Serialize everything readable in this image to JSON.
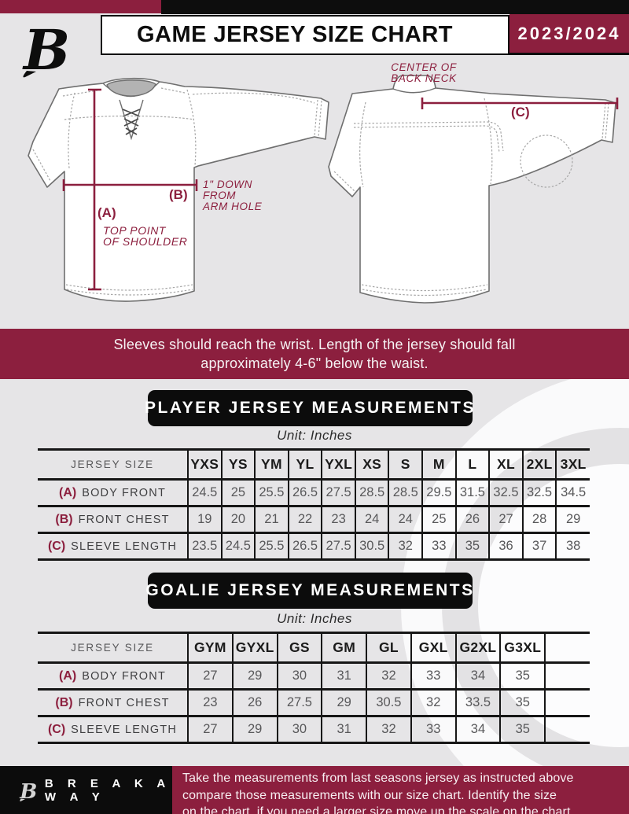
{
  "colors": {
    "maroon": "#8C1F3E",
    "black": "#0D0D0D",
    "background": "#E6E5E7",
    "table_value_text": "#58585A"
  },
  "header": {
    "title": "GAME JERSEY SIZE CHART",
    "season": "2023/2024",
    "logo": "breakaway-b-logo"
  },
  "diagram": {
    "front": {
      "marker_a": "(A)",
      "note_a": [
        "TOP POINT",
        "OF SHOULDER"
      ],
      "marker_b": "(B)",
      "note_b": [
        "1\" DOWN",
        "FROM",
        "ARM HOLE"
      ]
    },
    "back": {
      "marker_c": "(C)",
      "note_c": [
        "CENTER OF",
        "BACK NECK"
      ]
    }
  },
  "notice": {
    "lines": [
      "Sleeves should reach the wrist. Length of the jersey should fall",
      "approximately 4-6\" below the waist."
    ]
  },
  "player": {
    "title": "PLAYER JERSEY MEASUREMENTS",
    "unit": "Unit: Inches",
    "table": {
      "corner_label": "JERSEY SIZE",
      "sizes": [
        "YXS",
        "YS",
        "YM",
        "YL",
        "YXL",
        "XS",
        "S",
        "M",
        "L",
        "XL",
        "2XL",
        "3XL"
      ],
      "trailing_empty_cols": 0,
      "rows": [
        {
          "key": "(A)",
          "label": "BODY FRONT",
          "values": [
            "24.5",
            "25",
            "25.5",
            "26.5",
            "27.5",
            "28.5",
            "28.5",
            "29.5",
            "31.5",
            "32.5",
            "32.5",
            "34.5"
          ]
        },
        {
          "key": "(B)",
          "label": "FRONT CHEST",
          "values": [
            "19",
            "20",
            "21",
            "22",
            "23",
            "24",
            "24",
            "25",
            "26",
            "27",
            "28",
            "29"
          ]
        },
        {
          "key": "(C)",
          "label": "SLEEVE LENGTH",
          "values": [
            "23.5",
            "24.5",
            "25.5",
            "26.5",
            "27.5",
            "30.5",
            "32",
            "33",
            "35",
            "36",
            "37",
            "38"
          ]
        }
      ]
    }
  },
  "goalie": {
    "title": "GOALIE JERSEY MEASUREMENTS",
    "unit": "Unit: Inches",
    "table": {
      "corner_label": "JERSEY SIZE",
      "sizes": [
        "GYM",
        "GYXL",
        "GS",
        "GM",
        "GL",
        "GXL",
        "G2XL",
        "G3XL"
      ],
      "trailing_empty_cols": 1,
      "rows": [
        {
          "key": "(A)",
          "label": "BODY FRONT",
          "values": [
            "27",
            "29",
            "30",
            "31",
            "32",
            "33",
            "34",
            "35"
          ]
        },
        {
          "key": "(B)",
          "label": "FRONT CHEST",
          "values": [
            "23",
            "26",
            "27.5",
            "29",
            "30.5",
            "32",
            "33.5",
            "35"
          ]
        },
        {
          "key": "(C)",
          "label": "SLEEVE LENGTH",
          "values": [
            "27",
            "29",
            "30",
            "31",
            "32",
            "33",
            "34",
            "35"
          ]
        }
      ]
    }
  },
  "footer": {
    "logo": "breakaway-b-logo",
    "brand": "B R E A K A W A Y",
    "lines": [
      "Take the measurements from last seasons jersey as instructed above",
      "compare those measurements  with our size chart. Identify the size",
      "on the chart, if you need a larger size move up the scale on the chart"
    ]
  }
}
